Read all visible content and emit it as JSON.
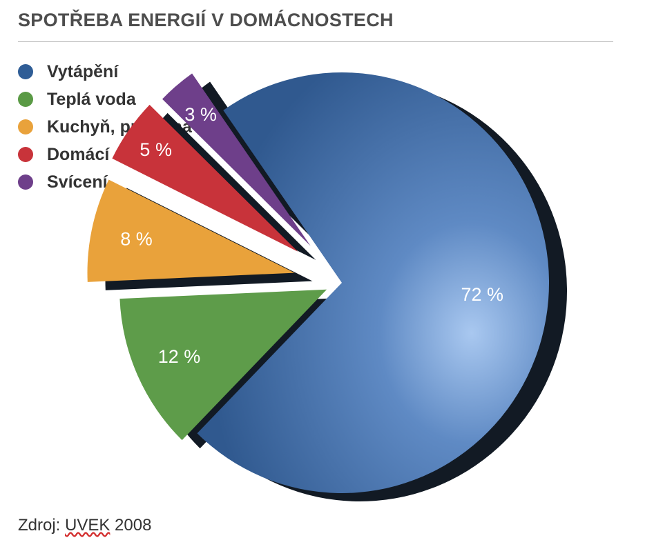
{
  "chart_data": {
    "type": "pie",
    "title": "SPOTŘEBA ENERGIÍ V DOMÁCNOSTECH",
    "series": [
      {
        "name": "Vytápění",
        "value": 72,
        "label": "72 %",
        "color": "#3a66a3"
      },
      {
        "name": "Teplá voda",
        "value": 12,
        "label": "12 %",
        "color": "#5e9c4a"
      },
      {
        "name": "Kuchyň, prádelna",
        "value": 8,
        "label": "8 %",
        "color": "#e9a23b"
      },
      {
        "name": "Domácí spotřebiče",
        "value": 5,
        "label": "5 %",
        "color": "#c8333a"
      },
      {
        "name": "Svícení",
        "value": 3,
        "label": "3 %",
        "color": "#6e3f8a"
      }
    ],
    "legend_position": "top-left",
    "style": "3d-exploded"
  },
  "source": {
    "prefix": "Zdroj: ",
    "org": "UVEK",
    "year": " 2008"
  }
}
